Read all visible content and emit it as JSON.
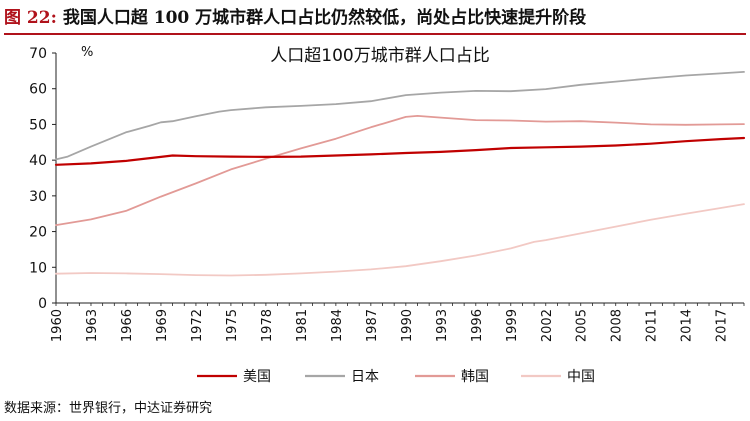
{
  "figure": {
    "number": "图 22:",
    "heading": "我国人口超 100 万城市群人口占比仍然较低，尚处占比快速提升阶段",
    "source": "数据来源：世界银行，中达证券研究"
  },
  "chart_data": {
    "type": "line",
    "title": "人口超100万城市群人口占比",
    "ylabel": "%",
    "xlabel": "",
    "ylim": [
      0,
      70
    ],
    "yticks": [
      0,
      10,
      20,
      30,
      40,
      50,
      60,
      70
    ],
    "xlim": [
      1960,
      2019
    ],
    "xticks": [
      1960,
      1963,
      1966,
      1969,
      1972,
      1975,
      1978,
      1981,
      1984,
      1987,
      1990,
      1993,
      1996,
      1999,
      2002,
      2005,
      2008,
      2011,
      2014,
      2017
    ],
    "grid": false,
    "legend_position": "bottom",
    "series": [
      {
        "name": "美国",
        "color": "#c00000",
        "points": [
          [
            1960,
            38.7
          ],
          [
            1963,
            39.1
          ],
          [
            1966,
            39.8
          ],
          [
            1969,
            40.9
          ],
          [
            1970,
            41.3
          ],
          [
            1972,
            41.1
          ],
          [
            1975,
            41.0
          ],
          [
            1978,
            40.9
          ],
          [
            1981,
            41.0
          ],
          [
            1984,
            41.3
          ],
          [
            1987,
            41.6
          ],
          [
            1990,
            42.0
          ],
          [
            1993,
            42.3
          ],
          [
            1996,
            42.8
          ],
          [
            1999,
            43.4
          ],
          [
            2002,
            43.6
          ],
          [
            2005,
            43.8
          ],
          [
            2008,
            44.1
          ],
          [
            2011,
            44.6
          ],
          [
            2014,
            45.3
          ],
          [
            2017,
            45.9
          ],
          [
            2019,
            46.2
          ]
        ]
      },
      {
        "name": "日本",
        "color": "#a6a6a6",
        "points": [
          [
            1960,
            40.2
          ],
          [
            1961,
            41.0
          ],
          [
            1963,
            43.8
          ],
          [
            1966,
            47.8
          ],
          [
            1968,
            49.6
          ],
          [
            1969,
            50.6
          ],
          [
            1970,
            50.9
          ],
          [
            1972,
            52.3
          ],
          [
            1974,
            53.6
          ],
          [
            1975,
            54.0
          ],
          [
            1978,
            54.8
          ],
          [
            1981,
            55.2
          ],
          [
            1984,
            55.7
          ],
          [
            1987,
            56.5
          ],
          [
            1990,
            58.2
          ],
          [
            1993,
            58.9
          ],
          [
            1996,
            59.4
          ],
          [
            1999,
            59.3
          ],
          [
            2002,
            59.9
          ],
          [
            2005,
            61.1
          ],
          [
            2008,
            62.0
          ],
          [
            2011,
            62.9
          ],
          [
            2014,
            63.7
          ],
          [
            2017,
            64.3
          ],
          [
            2019,
            64.7
          ]
        ]
      },
      {
        "name": "韩国",
        "color": "#e29a96",
        "points": [
          [
            1960,
            21.8
          ],
          [
            1963,
            23.4
          ],
          [
            1966,
            25.8
          ],
          [
            1969,
            29.8
          ],
          [
            1972,
            33.5
          ],
          [
            1975,
            37.4
          ],
          [
            1978,
            40.4
          ],
          [
            1981,
            43.3
          ],
          [
            1984,
            46.0
          ],
          [
            1987,
            49.2
          ],
          [
            1990,
            52.1
          ],
          [
            1991,
            52.4
          ],
          [
            1993,
            51.9
          ],
          [
            1996,
            51.2
          ],
          [
            1999,
            51.1
          ],
          [
            2002,
            50.8
          ],
          [
            2005,
            50.9
          ],
          [
            2008,
            50.5
          ],
          [
            2011,
            50.0
          ],
          [
            2014,
            49.9
          ],
          [
            2017,
            50.0
          ],
          [
            2019,
            50.1
          ]
        ]
      },
      {
        "name": "中国",
        "color": "#f2c9c4",
        "points": [
          [
            1960,
            8.2
          ],
          [
            1963,
            8.4
          ],
          [
            1966,
            8.3
          ],
          [
            1969,
            8.1
          ],
          [
            1972,
            7.8
          ],
          [
            1975,
            7.7
          ],
          [
            1978,
            7.9
          ],
          [
            1981,
            8.3
          ],
          [
            1984,
            8.8
          ],
          [
            1987,
            9.4
          ],
          [
            1990,
            10.3
          ],
          [
            1993,
            11.7
          ],
          [
            1996,
            13.3
          ],
          [
            1999,
            15.3
          ],
          [
            2001,
            17.1
          ],
          [
            2002,
            17.6
          ],
          [
            2005,
            19.5
          ],
          [
            2008,
            21.4
          ],
          [
            2011,
            23.3
          ],
          [
            2014,
            25.0
          ],
          [
            2017,
            26.6
          ],
          [
            2019,
            27.7
          ]
        ]
      }
    ]
  }
}
